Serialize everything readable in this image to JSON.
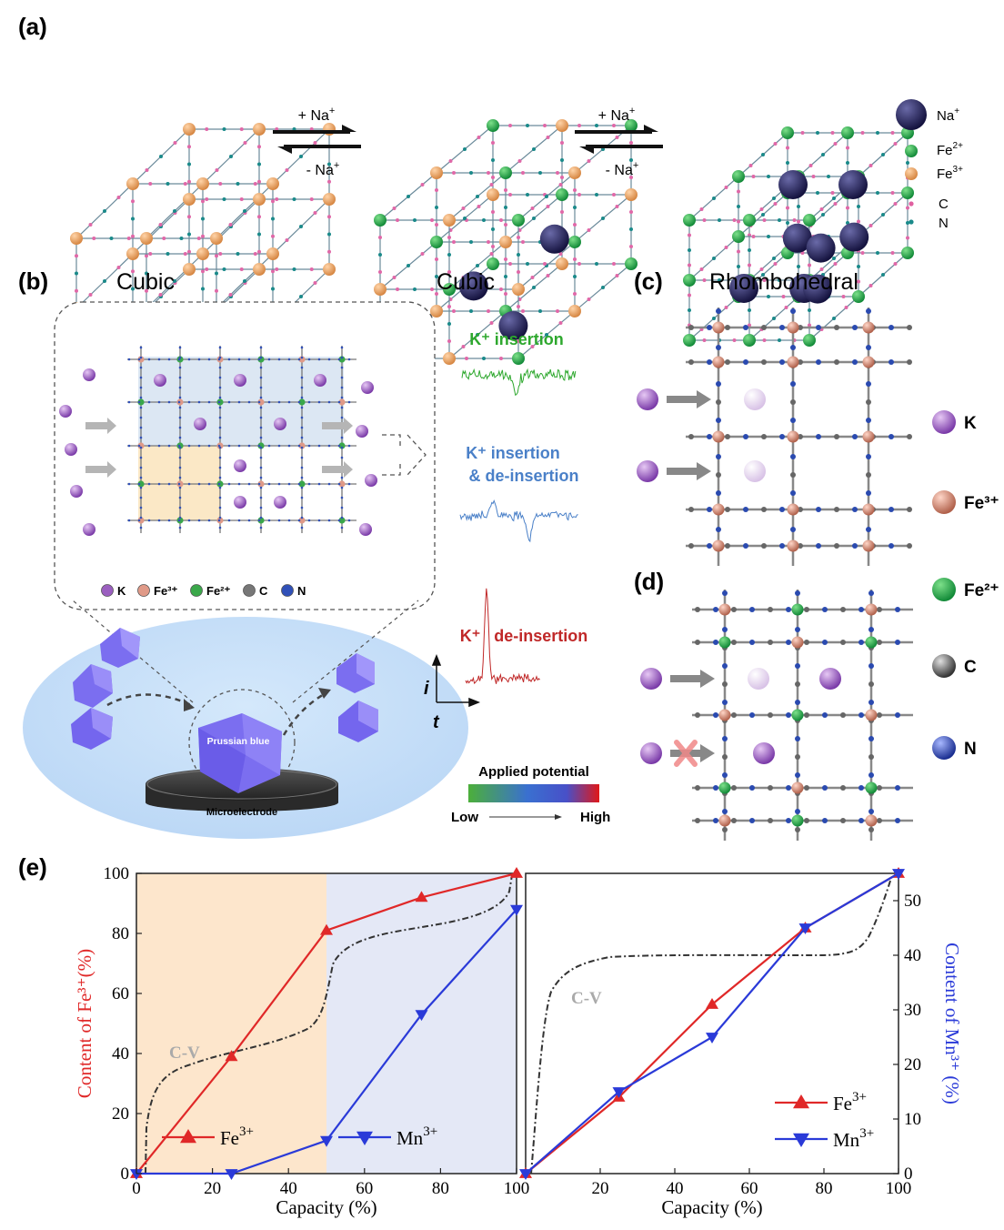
{
  "panel_labels": {
    "a": "(a)",
    "b": "(b)",
    "c": "(c)",
    "d": "(d)",
    "e": "(e)"
  },
  "panel_a": {
    "lattice_labels": [
      "Cubic",
      "Cubic",
      "Rhombohedral"
    ],
    "arrow1": {
      "forward": "+ Na",
      "backward": "- Na",
      "sup": "+"
    },
    "arrow2": {
      "forward": "+ Na",
      "backward": "- Na",
      "sup": "+"
    },
    "legend": [
      {
        "label": "Na",
        "sup": "+",
        "color": "#1c1a4f",
        "kind": "big-sphere"
      },
      {
        "label": "Fe",
        "sup": "2+",
        "color": "#1fa44a",
        "kind": "sphere"
      },
      {
        "label": "Fe",
        "sup": "3+",
        "color": "#f0a868",
        "kind": "sphere"
      },
      {
        "label": "C",
        "sup": "",
        "color": "#e060a0",
        "kind": "dot"
      },
      {
        "label": "N",
        "sup": "",
        "color": "#1a8a8a",
        "kind": "dot"
      }
    ]
  },
  "panel_b": {
    "legend": [
      {
        "label": "K",
        "color": "#9b5fc0"
      },
      {
        "label": "Fe³⁺",
        "color": "#e09a88"
      },
      {
        "label": "Fe²⁺",
        "color": "#3aa84a"
      },
      {
        "label": "C",
        "color": "#777777"
      },
      {
        "label": "N",
        "color": "#3050b8"
      }
    ],
    "crystal_label": "Prussian blue",
    "electrode_label": "Microelectrode",
    "traces": [
      {
        "label": "K⁺ insertion",
        "color": "#2ea82e"
      },
      {
        "label": "K⁺ insertion",
        "label2": "& de-insertion",
        "color": "#4a80c8"
      },
      {
        "label": "K⁺   de-insertion",
        "color": "#c02828"
      }
    ],
    "axis_i": "i",
    "axis_t": "t",
    "potential": {
      "title": "Applied potential",
      "low": "Low",
      "high": "High"
    }
  },
  "panel_cd": {
    "legend": [
      {
        "label": "K",
        "color": "#9b5fc0"
      },
      {
        "label": "Fe³⁺",
        "color": "#d0806a"
      },
      {
        "label": "Fe²⁺",
        "color": "#2ea84a"
      },
      {
        "label": "C",
        "color": "#555555"
      },
      {
        "label": "N",
        "color": "#2a4ab0"
      }
    ]
  },
  "chart_data": [
    {
      "type": "line",
      "xlabel": "Capacity (%)",
      "ylabel": "Content of Fe³⁺(%)",
      "xlim": [
        0,
        100
      ],
      "ylim": [
        0,
        100
      ],
      "xticks": [
        0,
        20,
        40,
        60,
        80,
        100
      ],
      "yticks": [
        0,
        20,
        40,
        60,
        80,
        100
      ],
      "shaded_regions": [
        {
          "from": 0,
          "to": 50,
          "color": "#fde6cc"
        },
        {
          "from": 50,
          "to": 100,
          "color": "#e4e8f6"
        }
      ],
      "series": [
        {
          "name": "Fe3+",
          "color": "#e02828",
          "marker": "triangle-up",
          "x": [
            0,
            25,
            50,
            75,
            100
          ],
          "y": [
            0,
            39,
            81,
            92,
            100
          ]
        },
        {
          "name": "Mn3+",
          "color": "#2a3ad8",
          "marker": "triangle-down",
          "x": [
            0,
            25,
            50,
            75,
            100
          ],
          "y": [
            0,
            0,
            11,
            53,
            88
          ]
        }
      ],
      "curve_label": "C-V",
      "legend": [
        {
          "text": "Fe",
          "sup": "3+"
        },
        {
          "text": "Mn",
          "sup": "3+"
        }
      ]
    },
    {
      "type": "line",
      "xlabel": "Capacity (%)",
      "ylabel": "Content of Mn³⁺ (%)",
      "xlim": [
        0,
        100
      ],
      "ylim": [
        0,
        55
      ],
      "xticks": [
        20,
        40,
        60,
        80,
        100
      ],
      "yticks": [
        0,
        10,
        20,
        30,
        40,
        50
      ],
      "series": [
        {
          "name": "Fe3+",
          "color": "#e02828",
          "marker": "triangle-up",
          "x": [
            0,
            25,
            50,
            75,
            100
          ],
          "y": [
            0,
            14,
            31,
            45,
            55
          ]
        },
        {
          "name": "Mn3+",
          "color": "#2a3ad8",
          "marker": "triangle-down",
          "x": [
            0,
            25,
            50,
            75,
            100
          ],
          "y": [
            0,
            15,
            25,
            45,
            55
          ]
        }
      ],
      "curve_label": "C-V",
      "legend": [
        {
          "text": "Fe",
          "sup": "3+"
        },
        {
          "text": "Mn",
          "sup": "3+"
        }
      ]
    }
  ]
}
